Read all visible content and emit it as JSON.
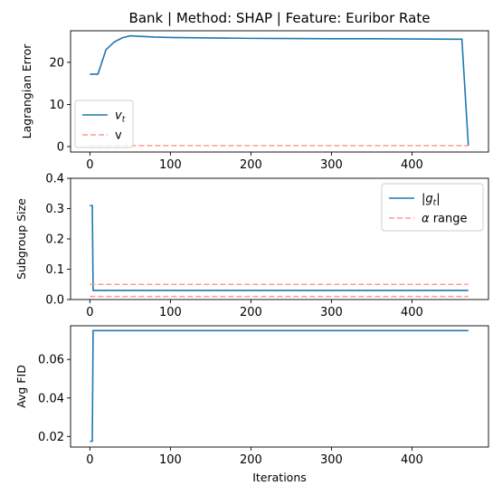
{
  "chart_data": [
    {
      "type": "line",
      "title": "Bank | Method: SHAP | Feature: Euribor Rate",
      "xlabel": "",
      "ylabel": "Lagrangian Error",
      "xlim": [
        -24,
        495
      ],
      "ylim": [
        -1.3,
        27.5
      ],
      "xticks": [
        0,
        100,
        200,
        300,
        400
      ],
      "xtick_labels": [
        "0",
        "100",
        "200",
        "300",
        "400"
      ],
      "yticks": [
        0,
        10,
        20
      ],
      "ytick_labels": [
        "0",
        "10",
        "20"
      ],
      "legend_position": "lower-left",
      "series": [
        {
          "name": "v_t",
          "legend_html": "<tspan font-style=\"italic\">v</tspan><tspan font-size=\"9\" dy=\"3\" font-style=\"italic\">t</tspan>",
          "color": "#1f77b4",
          "style": "solid",
          "x": [
            0,
            5,
            10,
            20,
            30,
            40,
            50,
            60,
            80,
            100,
            150,
            200,
            250,
            300,
            350,
            400,
            450,
            462,
            470
          ],
          "y": [
            17.2,
            17.2,
            17.2,
            23.0,
            24.8,
            25.8,
            26.3,
            26.2,
            26.0,
            25.9,
            25.8,
            25.7,
            25.65,
            25.6,
            25.6,
            25.55,
            25.5,
            25.5,
            0.2
          ]
        },
        {
          "name": "v",
          "color": "#ff9896",
          "style": "dashed",
          "x": [
            0,
            470
          ],
          "y": [
            0.2,
            0.2
          ]
        }
      ]
    },
    {
      "type": "line",
      "title": "",
      "xlabel": "",
      "ylabel": "Subgroup Size",
      "xlim": [
        -24,
        495
      ],
      "ylim": [
        0,
        0.4
      ],
      "xticks": [
        0,
        100,
        200,
        300,
        400
      ],
      "xtick_labels": [
        "0",
        "100",
        "200",
        "300",
        "400"
      ],
      "yticks": [
        0.0,
        0.1,
        0.2,
        0.3,
        0.4
      ],
      "ytick_labels": [
        "0.0",
        "0.1",
        "0.2",
        "0.3",
        "0.4"
      ],
      "legend_position": "top-right",
      "series": [
        {
          "name": "|g_t|",
          "legend_html": "|<tspan font-style=\"italic\">g</tspan><tspan font-size=\"9\" dy=\"3\" font-style=\"italic\">t</tspan><tspan dy=\"-3\">|</tspan>",
          "color": "#1f77b4",
          "style": "solid",
          "x": [
            0,
            3,
            4,
            470
          ],
          "y": [
            0.31,
            0.31,
            0.03,
            0.03
          ]
        },
        {
          "name": "α range",
          "legend_html": "<tspan font-style=\"italic\">α</tspan> range",
          "color": "#ff9896",
          "style": "dashed",
          "x": [
            0,
            470
          ],
          "y": [
            0.05,
            0.05
          ]
        },
        {
          "name": "",
          "color": "#ff9896",
          "style": "dashed",
          "x": [
            0,
            470
          ],
          "y": [
            0.01,
            0.01
          ],
          "hide_in_legend": true
        }
      ]
    },
    {
      "type": "line",
      "title": "",
      "xlabel": "Iterations",
      "ylabel": "Avg FID",
      "xlim": [
        -24,
        495
      ],
      "ylim": [
        0.0145,
        0.0775
      ],
      "xticks": [
        0,
        100,
        200,
        300,
        400
      ],
      "xtick_labels": [
        "0",
        "100",
        "200",
        "300",
        "400"
      ],
      "yticks": [
        0.02,
        0.04,
        0.06
      ],
      "ytick_labels": [
        "0.02",
        "0.04",
        "0.06"
      ],
      "legend_position": "none",
      "series": [
        {
          "name": "",
          "color": "#1f77b4",
          "style": "solid",
          "x": [
            0,
            3,
            4,
            470
          ],
          "y": [
            0.0175,
            0.0175,
            0.075,
            0.075
          ]
        }
      ]
    }
  ]
}
